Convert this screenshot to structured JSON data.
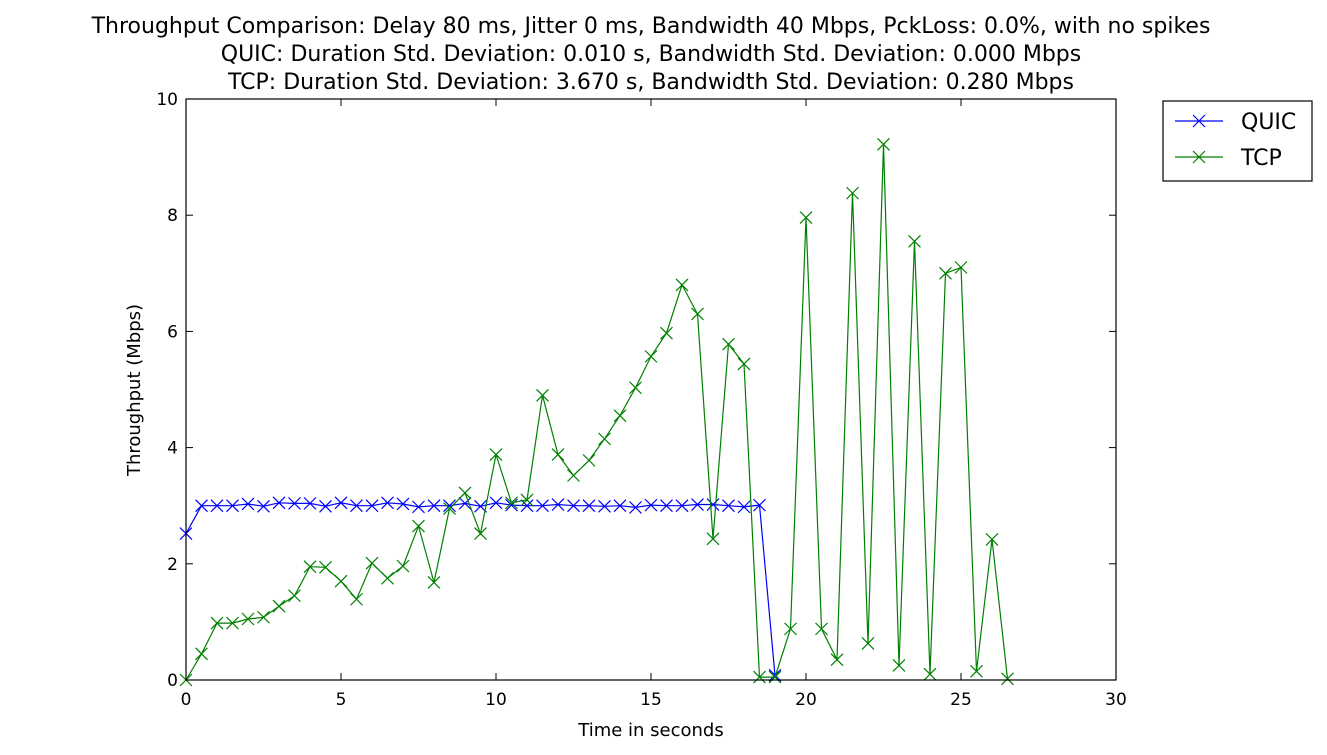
{
  "chart_data": {
    "type": "line",
    "title_lines": [
      "Throughput Comparison: Delay 80 ms, Jitter 0 ms, Bandwidth 40 Mbps, PckLoss: 0.0%, with no spikes",
      "QUIC: Duration Std. Deviation: 0.010 s, Bandwidth Std. Deviation: 0.000 Mbps",
      "TCP: Duration Std. Deviation: 3.670 s, Bandwidth Std. Deviation: 0.280 Mbps"
    ],
    "xlabel": "Time in seconds",
    "ylabel": "Throughput (Mbps)",
    "xlim": [
      0,
      30
    ],
    "ylim": [
      0,
      10
    ],
    "xticks": [
      0,
      5,
      10,
      15,
      20,
      25,
      30
    ],
    "yticks": [
      0,
      2,
      4,
      6,
      8,
      10
    ],
    "grid": false,
    "legend_position": "outside-top-right",
    "series": [
      {
        "name": "QUIC",
        "color": "#0000ff",
        "marker": "x",
        "x": [
          0,
          0.5,
          1,
          1.5,
          2,
          2.5,
          3,
          3.5,
          4,
          4.5,
          5,
          5.5,
          6,
          6.5,
          7,
          7.5,
          8,
          8.5,
          9,
          9.5,
          10,
          10.5,
          11,
          11.5,
          12,
          12.5,
          13,
          13.5,
          14,
          14.5,
          15,
          15.5,
          16,
          16.5,
          17,
          17.5,
          18,
          18.5,
          19
        ],
        "y": [
          2.52,
          3.0,
          3.0,
          3.0,
          3.03,
          2.99,
          3.05,
          3.04,
          3.04,
          2.99,
          3.05,
          3.0,
          3.0,
          3.05,
          3.03,
          2.98,
          3.0,
          3.0,
          3.04,
          2.99,
          3.05,
          3.01,
          3.0,
          3.0,
          3.02,
          3.0,
          3.0,
          2.99,
          3.0,
          2.97,
          3.01,
          3.0,
          3.0,
          3.02,
          3.02,
          3.0,
          2.98,
          3.01,
          0.08
        ]
      },
      {
        "name": "TCP",
        "color": "#008000",
        "marker": "x",
        "x": [
          0,
          0.5,
          1,
          1.5,
          2,
          2.5,
          3,
          3.5,
          4,
          4.5,
          5,
          5.5,
          6,
          6.5,
          7,
          7.5,
          8,
          8.5,
          9,
          9.5,
          10,
          10.5,
          11,
          11.5,
          12,
          12.5,
          13,
          13.5,
          14,
          14.5,
          15,
          15.5,
          16,
          16.5,
          17,
          17.5,
          18,
          18.5,
          19,
          19.5,
          20,
          20.5,
          21,
          21.5,
          22,
          22.5,
          23,
          23.5,
          24,
          24.5,
          25,
          25.5,
          26,
          26.5
        ],
        "y": [
          0.0,
          0.45,
          0.98,
          0.98,
          1.05,
          1.08,
          1.27,
          1.45,
          1.95,
          1.94,
          1.7,
          1.39,
          2.01,
          1.75,
          1.96,
          2.65,
          1.68,
          2.95,
          3.22,
          2.52,
          3.88,
          3.05,
          3.1,
          4.9,
          3.88,
          3.52,
          3.78,
          4.15,
          4.55,
          5.03,
          5.57,
          5.97,
          6.8,
          6.3,
          2.43,
          5.78,
          5.44,
          0.05,
          0.05,
          0.88,
          7.96,
          0.88,
          0.35,
          8.38,
          0.63,
          9.22,
          0.25,
          7.55,
          0.1,
          7.0,
          7.1,
          0.15,
          2.42,
          0.02
        ]
      }
    ]
  }
}
